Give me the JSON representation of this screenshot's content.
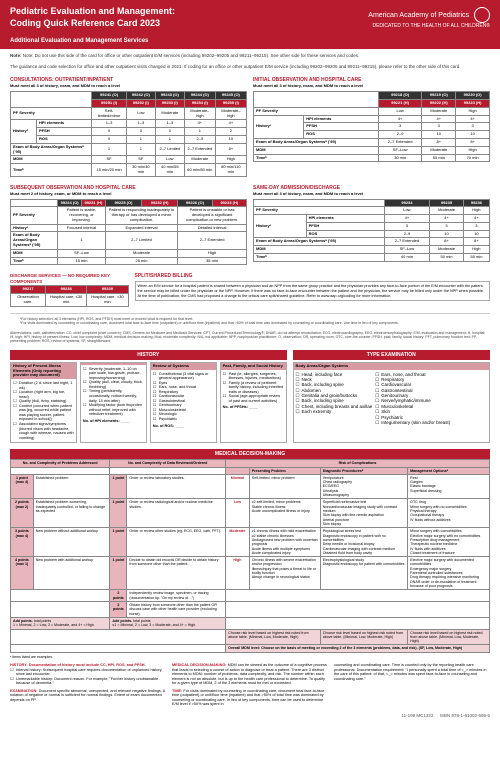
{
  "header": {
    "title_line1": "Pediatric Evaluation and Management:",
    "title_line2": "Coding Quick Reference Card 2023",
    "org": "American Academy of Pediatrics",
    "tagline": "DEDICATED TO THE HEALTH OF ALL CHILDREN®"
  },
  "section1_title": "Additional Evaluation and Management Services",
  "top_note": "Note: Do not use this side of the card for office or other outpatient E/M services (including 99202–99205 and 99211–99215). See other side for these services and codes.",
  "guidance": "The guidance and code selection for office and other outpatient visits changed in 2021. If coding for an office or other outpatient E/M service (including 99202–99205 and 99211–99215), please refer to the other side of this card.",
  "consult": {
    "title": "CONSULTATIONS: OUTPATIENT/INPATIENT",
    "sub": "Must meet all 3 of history, exam, and MDM to reach a level",
    "codes_o": [
      "99241 (O)",
      "99242 (O)",
      "99243 (O)",
      "99244 (O)",
      "99245 (O)"
    ],
    "codes_i": [
      "99251 (I)",
      "99252 (I)",
      "99253 (I)",
      "99254 (I)",
      "99255 (I)"
    ],
    "rows": [
      {
        "label": "PF Severity",
        "vals": [
          "Self-limited/minor",
          "Low",
          "Moderate",
          "Moderate–high",
          "Moderate–high"
        ]
      },
      {
        "label": "HPI elements",
        "vals": [
          "1–3",
          "1–3",
          "1–3",
          "4+",
          "4+"
        ]
      },
      {
        "label": "PFSH",
        "vals": [
          "0",
          "0",
          "0",
          "1",
          "2"
        ]
      },
      {
        "label": "ROS",
        "vals": [
          "0",
          "1",
          "1",
          "2–9",
          "10"
        ]
      },
      {
        "label": "Exam of Body Areas/Organ Systemsᵃ (ʼ95)",
        "vals": [
          "1",
          "1",
          "2–7 Limited",
          "2–7 Extended",
          "8+"
        ]
      },
      {
        "label": "MDM",
        "vals": [
          "SF",
          "SF",
          "Low",
          "Moderate",
          "High"
        ]
      },
      {
        "label": "Timeᵇ",
        "vals": [
          "15 min/20 min",
          "30 min/40 min",
          "40 min/55 min",
          "60 min/80 min",
          "80 min/110 min"
        ]
      }
    ]
  },
  "initial": {
    "title": "INITIAL OBSERVATION AND HOSPITAL CARE",
    "sub": "Must meet all 3 of history, exam, and MDM to reach a level",
    "codes_o": [
      "99218 (O)",
      "99219 (O)",
      "99220 (O)"
    ],
    "codes_h": [
      "99221 (H)",
      "99222 (H)",
      "99223 (H)"
    ],
    "rows": [
      {
        "label": "PF Severity",
        "vals": [
          "Low",
          "Moderate",
          "High"
        ]
      },
      {
        "label": "HPI elements",
        "vals": [
          "4+",
          "4+",
          "4+"
        ]
      },
      {
        "label": "PFSH",
        "vals": [
          "3",
          "3",
          "3"
        ]
      },
      {
        "label": "ROS",
        "vals": [
          "2–9",
          "10",
          "10"
        ]
      },
      {
        "label": "Exam of Body Areas/Organ Systemsᵃ (ʼ95)",
        "vals": [
          "2–7 Extended",
          "8+",
          "8+"
        ]
      },
      {
        "label": "MDM",
        "vals": [
          "SF–Low",
          "Moderate",
          "High"
        ]
      },
      {
        "label": "Timeᵇ",
        "vals": [
          "30 min",
          "50 min",
          "70 min"
        ]
      }
    ]
  },
  "subseq": {
    "title": "SUBSEQUENT OBSERVATION AND HOSPITAL CARE",
    "sub": "Must meet 2 of history, exam, or MDM to reach a level",
    "codes": [
      "99224 (O)",
      "99231 (H)",
      "99225 (O)",
      "99232 (H)",
      "99226 (O)",
      "99233 (H)"
    ],
    "rows": [
      {
        "label": "PF Severity",
        "vals": [
          "Patient is stable, recovering, or improving.",
          "Patient is responding inadequately to therapy or has developed a minor complication.",
          "Patient is unstable or has developed a significant complication or new problem."
        ]
      },
      {
        "label": "Historyᶜ",
        "vals": [
          "Focused interval",
          "Expanded interval",
          "Detailed interval"
        ]
      },
      {
        "label": "Exam of Body Areas/Organ Systemsᵃ (ʼ95)",
        "vals": [
          "1",
          "2–7 Limited",
          "2–7 Extended"
        ]
      },
      {
        "label": "MDM",
        "vals": [
          "SF–Low",
          "Moderate",
          "High"
        ]
      },
      {
        "label": "Timeᵇ",
        "vals": [
          "15 min",
          "25 min",
          "35 min"
        ]
      }
    ]
  },
  "sameday": {
    "title": "SAME-DAY ADMISSION/DISCHARGE",
    "sub": "Must meet all 3 of history, exam, and MDM to reach a level",
    "codes": [
      "99234",
      "99235",
      "99236"
    ],
    "rows": [
      {
        "label": "PF Severity",
        "vals": [
          "Low",
          "Moderate",
          "High"
        ]
      },
      {
        "label": "HPI elements",
        "vals": [
          "4+",
          "4+",
          "4+"
        ]
      },
      {
        "label": "PFSH",
        "vals": [
          "3",
          "3",
          "3"
        ]
      },
      {
        "label": "ROS",
        "vals": [
          "2–9",
          "10",
          "10"
        ]
      },
      {
        "label": "Exam of Body Areas/Organ Systemsᵃ (ʼ95)",
        "vals": [
          "2–7 Extended",
          "8+",
          "8+"
        ]
      },
      {
        "label": "MDM",
        "vals": [
          "SF–Low",
          "Moderate",
          "High"
        ]
      },
      {
        "label": "Timeᵇ",
        "vals": [
          "40 min",
          "50 min",
          "55 min"
        ]
      }
    ]
  },
  "discharge": {
    "title": "DISCHARGE SERVICES — No required key components",
    "codes": [
      "99217",
      "99238",
      "99239"
    ],
    "rows": [
      {
        "label": "",
        "vals": [
          "Observation care.",
          "Hospital care, ≤30 min",
          "Hospital care, >30 min"
        ]
      }
    ]
  },
  "split": {
    "title": "SPLIT/SHARED BILLING",
    "text": "When an E/M service for a hospital patient is shared between a physician and an NPP from the same group practice and the physician provides any face-to-face portion of the E/M encounter with the patient, the service may be billed under the physician or the NPP. However, if there was no face-to-face encounter between the patient and the physician, the service may be billed only under the NPP when possible. At the time of publication, the CMS had proposed a change to the critical care split/shared guideline. Refer to www.aap.org/coding for more information."
  },
  "footnotes": "ᶜFor history selection, all 3 elements (HPI, ROS, and PFSH) must meet or exceed what is required for that level.\nᵇFor visits dominated by counseling or coordinating care, document total face-to-face time (outpatient) or unit/floor time (inpatient) and that >50% of total time was dominated by counseling or coordinating care. Use time in lieu of key components.",
  "abbrev": "Abbreviations: cath, catheterization; CC, chief complaint (chief concern); CMS, Centers for Medicare and Medicaid Services; CPT, Current Procedural Terminology®; DNAR, do not attempt resuscitation; ECG, electrocardiography; EEG, electroencephalography; E/M, evaluation and management; H, hospital; Hi, high; HPI, history of present illness; Low, low complexity; MDM, medical decision-making; Mod, moderate complexity; N/A, not applicable; NPP, nonphysician practitioner; O, observation; OR, operating room; OTC, over-the-counter; PFSH, past, family, social history; PFT, pulmonary function test; PP, presenting problem; ROS, review of systems; SF, straightforward.",
  "history_panel": "HISTORY",
  "type_exam_panel": "TYPE EXAMINATION",
  "hist_cols": {
    "hpi": {
      "title": "History of Present Illness Elements (Only reporting provider may document)",
      "items": [
        "Duration (2 d, since last night, 1 wk)",
        "Location (right arm, big toe, head)",
        "Quality (dull, itchy, stabbing)",
        "Context (occurred when patient was [eg, occurred while patient was playing soccer, patient exposed in school])",
        "Associated signs/symptoms (blurred vision with headache, cough with wheeze, nausea with vomiting)"
      ]
    },
    "sev": {
      "title": "",
      "items": [
        "Severity (moderate, 1–10 on pain scale, low-grade, profuse, improving/worsening)",
        "Quality (dull, clear, cloudy, thick, throbbing)",
        "Timing (persistently, occasionally, noticed weekly, daily, 15 min after)",
        "Modifying factor (took ibuprofen without relief, improved with nebulizer treatment)"
      ],
      "count": "No. of HPI elements: ____"
    },
    "ros": {
      "title": "Review of Systems",
      "items": [
        "Constitutional (3 vital signs or general appearance)",
        "Eyes",
        "Ears, nose, and throat",
        "Respiratory",
        "Cardiovascular",
        "Gastrointestinal",
        "Genitourinary",
        "Musculoskeletal",
        "Neurologic",
        "Psychiatric"
      ],
      "count": "No. of ROS: ____"
    },
    "pfsh": {
      "title": "Past, Family, and Social History",
      "items": [
        "Past (ie, allergies, surgeries, illnesses, injuries, medications)",
        "Family (a review of pertinent family history, including inherited traits or diseases)",
        "Social (age-appropriate review of past and current activities)"
      ],
      "count": "No. of PFSHs: ____"
    },
    "body": {
      "title": "Body Areas/Organ Systems",
      "left": [
        "Head, including face",
        "Neck",
        "Back, including spine",
        "Abdomen",
        "Genitalia and groin/buttocks",
        "Back, including spine",
        "Chest, including breasts and axillae",
        "Each extremity"
      ],
      "right": [
        "Ears, nose, and throat",
        "Respiratory",
        "Cardiovascular",
        "Gastrointestinal",
        "Genitourinary",
        "Nerve/lymphatic/immune",
        "Musculoskeletal",
        "Skin",
        "Psychiatric",
        "Integumentary (skin and/or breast)"
      ],
      "count": "____ Eyes ____"
    }
  },
  "mdm_title": "MEDICAL DECISION-MAKING",
  "mdm": {
    "col1_hdr": "No. and Complexity of Problems Addressed",
    "col2_hdr": "No. and Complexity of Data Reviewed/Ordered",
    "col3_hdr": "Risk of Complications",
    "sub_hdrs": [
      "Presenting Problem",
      "Diagnostic Proceduresᵃ",
      "Management Optionsᵃ"
    ],
    "rows": [
      {
        "pts": "1 point (max 4)",
        "prob": "Established problem",
        "dpts": "1 point",
        "data": "Order or review laboratory studies.",
        "lvl": "Minimal",
        "pp": "Self-limited, minor problem",
        "dp": "Venipuncture\nChest radiography\nECG/EEG\nUrinalysis\nUltrasonography",
        "mo": "Rest\nGargles\nElastic bandage\nSuperficial dressing"
      },
      {
        "pts": "2 points (max 2)",
        "prob": "Established problem worsening, inadequately controlled, or failing to change as expected",
        "dpts": "1 point",
        "data": "Order or review radiological and/or nuclear medicine studies.",
        "lvl": "Low",
        "pp": "≥2 self-limited, minor problems\nStable chronic illness\nAcute uncomplicated illness or injury",
        "dp": "Superficial noninvasive test\nNoncardiovascular imaging study with contrast medium\nSkin biopsy with fine-needle aspiration\nArterial puncture\nSkin biopsy",
        "mo": "OTC drug\nMinor surgery with no comorbidities\nPhysical therapy\nOccupational therapy\nIV fluids without additives"
      },
      {
        "pts": "3 points (max 4)",
        "prob": "New problem without additional workup",
        "dpts": "1 point",
        "data": "Order or review other studies (eg, ECG, EEG, cath, PFT).",
        "lvl": "Moderate",
        "pp": "≥1 chronic illness with mild exacerbation\n≥2 stable chronic illnesses\nUndiagnosed new problem with uncertain prognosis\nAcute illness with multiple symptoms\nAcute complicated injury",
        "dp": "Physiological stress test\nDiagnostic endoscopy in patient with no comorbidities\nDeep needle or incisional biopsy\nCardiovascular imaging with contrast medium\nObtained fluid from body cavity",
        "mo": "Minor surgery with comorbidities\nElective major surgery with no comorbidities\nPrescription drug management\nTherapeutic nuclear medicine\nIV fluids with additives\nClosed treatment of fracture"
      },
      {
        "pts": "4 points (max 1)",
        "prob": "New problem with additional workup",
        "dpts": "1 point",
        "data": "Decide to obtain old records OR decide to obtain history from someone other than the patient.",
        "lvl": "High",
        "pp": "Chronic illness with severe exacerbation and/or progression\nIllness/injury that poses a threat to life or bodily function\nAbrupt change in neurological status",
        "dp": "Electrophysiological study\nDiagnostic endoscopy for patient with comorbidities",
        "mo": "Elective major surgery with documented comorbidities\nEmergency major surgery\nParenteral controlled substances\nDrug therapy requiring intensive monitoring\nDNAR order or de-escalation of treatment because of poor prognosis"
      }
    ],
    "extra_data": [
      {
        "pts": "2 points",
        "data": "Independently review image, specimen, or tracing (documentation tip: \"On my review of…\")"
      },
      {
        "pts": "2 points",
        "data": "Obtain history from someone other than the patient OR discuss case with other health care provider (excluding nurse)."
      }
    ],
    "totals_row": {
      "label": "Add points.",
      "l1": "total points",
      "l2": "total points",
      "box1": "1 = Minimal, 2 = Low, 3 = Moderate, and 4+ = High.",
      "box2": "≤1 = Minimal, 2 = Low, 3 = Moderate, and 4+ = High."
    },
    "choose1": "Choose risk level based on highest risk noted from above table. (Minimal, Low, Moderate, High)",
    "choose2": "Choose risk level based on highest risk noted from above table. (Minimal, Low, Moderate, High)",
    "choose3": "Choose risk level based on highest risk noted from above table. (Minimal, Low, Moderate, High)",
    "overall": "Overall MDM level: Choose on the basis of meeting or exceeding 2 of the 3 elements (problems, data, and risk). (SF, Low, Moderate, High)",
    "examples_note": "ᵃ Items listed are examples."
  },
  "footer": {
    "c1_title": "HISTORY: Documentation of history must include CC, HPI, ROS, and PFSH.",
    "c1_items": [
      "Interval history: Subsequent hospital care requires documentation of unplanned history since last encounter.",
      "Unremarkable history: Document reason. For example, \"Further history unobtainable because of dementia.\""
    ],
    "c2_title": "EXAMINATION:",
    "c2_text": "Document specific abnormal, unexpected, and relevant negative findings. A notation of negative or normal is sufficient for normal findings. Extent of exam documented depends on PP.",
    "c3_title": "MEDICAL DECISION-MAKING:",
    "c3_text": "MDM can be viewed as the outcome of a cognitive process that leads to selecting a course of action to diagnose or treat a patient. There are 3 distinct elements to MDM: number of problems, data complexity, and risk. The number within each element is not an absolute, but is up to the health care professional to determine. To qualify for a given type of MDM, 2 of the 3 elements must be met or exceeded.",
    "c4_title": "TIME:",
    "c4_text": "For visits dominated by counseling or coordinating care, document total face-to-face time (outpatient) or unit/floor time (inpatient) and that >50% of total time was dominated by counseling or coordinating care. In lieu of key components, time can be used to determine E/M level if >50% was spent in",
    "c5_text": "counseling and coordinating care. Time is counted only by the reporting health care professional. Documentation requirement: \"I personally spent a total time of <_> minutes in the care of this patient; of that, <_> minutes was spent face-to-face in counseling and coordinating care.\""
  },
  "isbn": "ISBN 978-1-61002-595-5",
  "pagecode": "11-199     MC1322"
}
